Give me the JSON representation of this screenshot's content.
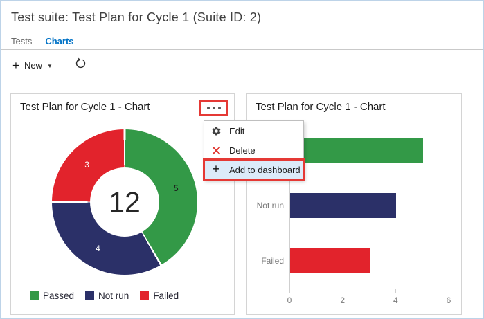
{
  "header": {
    "title": "Test suite: Test Plan for Cycle 1 (Suite ID: 2)"
  },
  "tabs": [
    {
      "label": "Tests",
      "active": false
    },
    {
      "label": "Charts",
      "active": true
    }
  ],
  "toolbar": {
    "new_label": "New",
    "new_icon": "plus-icon",
    "dropdown_icon": "chevron-down-icon",
    "refresh_icon": "refresh-icon"
  },
  "accent_color": "#0072c6",
  "annotation_color": "#e53935",
  "chart_data": [
    {
      "type": "pie",
      "subtype": "donut",
      "title": "Test Plan for Cycle 1 - Chart",
      "categories": [
        "Passed",
        "Not run",
        "Failed"
      ],
      "values": [
        5,
        4,
        3
      ],
      "colors": [
        "#339947",
        "#2B3068",
        "#E2232C"
      ],
      "slice_label_colors": [
        "#1c1c1c",
        "#ffffff",
        "#ffffff"
      ],
      "center_total": "12",
      "start_angle_deg": 0,
      "direction": "clockwise",
      "legend_position": "bottom"
    },
    {
      "type": "bar",
      "orientation": "horizontal",
      "title": "Test Plan for Cycle 1 - Chart",
      "categories": [
        "Passed",
        "Not run",
        "Failed"
      ],
      "values": [
        5,
        4,
        3
      ],
      "colors": [
        "#339947",
        "#2B3068",
        "#E2232C"
      ],
      "xlim": [
        0,
        6
      ],
      "xticks": [
        0,
        2,
        4,
        6
      ],
      "grid": false,
      "legend_position": "none"
    }
  ],
  "context_menu": {
    "items": [
      {
        "label": "Edit",
        "icon": "gear-icon",
        "highlighted": false
      },
      {
        "label": "Delete",
        "icon": "delete-x-icon",
        "highlighted": false
      },
      {
        "label": "Add to dashboard",
        "icon": "plus-icon",
        "highlighted": true
      }
    ]
  }
}
